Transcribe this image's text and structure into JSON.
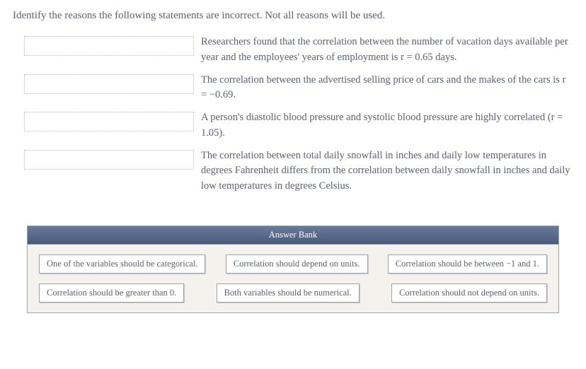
{
  "instruction": "Identify the reasons the following statements are incorrect. Not all reasons will be used.",
  "questions": {
    "q1": "Researchers found that the correlation between the number of vacation days available per year and the employees' years of employment is r = 0.65 days.",
    "q2": "The correlation between the advertised selling price of cars and the makes of the cars is r = −0.69.",
    "q3": "A person's diastolic blood pressure and systolic blood pressure are highly correlated (r = 1.05).",
    "q4": "The correlation between total daily snowfall in inches and daily low temperatures in degrees Fahrenheit differs from the correlation between daily snowfall in inches and daily low temperatures in degrees Celsius."
  },
  "bank": {
    "header": "Answer Bank",
    "items": {
      "a1": "One of the variables should be categorical.",
      "a2": "Correlation should depend on units.",
      "a3": "Correlation should be between −1 and 1.",
      "a4": "Correlation should be greater than 0.",
      "a5": "Both variables should be numerical.",
      "a6": "Correlation should not depend on units."
    }
  },
  "colors": {
    "text": "#5a6170",
    "drop_border": "#b5b9c4",
    "bank_header_bg": "#5a6a8a",
    "bank_body_bg": "#f5f2ee",
    "item_border": "#9aa2b3"
  }
}
